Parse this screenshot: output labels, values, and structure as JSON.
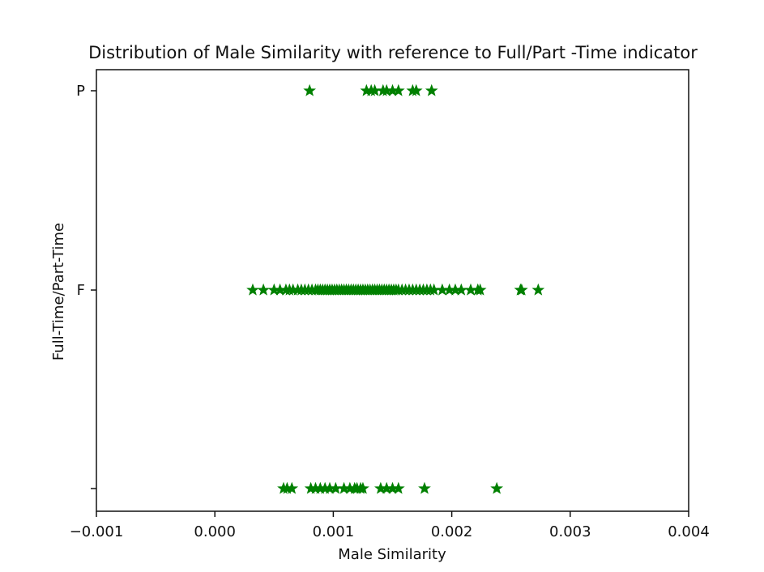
{
  "chart_data": {
    "type": "scatter",
    "title": "Distribution of Male Similarity with reference to Full/Part -Time indicator",
    "xlabel": "Male Similarity",
    "ylabel": "Full-Time/Part-Time",
    "xlim": [
      -0.001,
      0.004
    ],
    "xticks": [
      -0.001,
      0.0,
      0.001,
      0.002,
      0.003,
      0.004
    ],
    "xtick_labels": [
      "−0.001",
      "0.000",
      "0.001",
      "0.002",
      "0.003",
      "0.004"
    ],
    "categories": [
      "",
      "F",
      "P"
    ],
    "grid": false,
    "marker": "star",
    "color": "#008000",
    "series": [
      {
        "category": "P",
        "x": [
          0.0008,
          0.00128,
          0.00132,
          0.00135,
          0.00142,
          0.00145,
          0.0015,
          0.00155,
          0.00167,
          0.0017,
          0.00183
        ]
      },
      {
        "category": "F",
        "x": [
          0.00032,
          0.00041,
          0.0005,
          0.00055,
          0.0006,
          0.00063,
          0.00066,
          0.0007,
          0.00073,
          0.00076,
          0.00079,
          0.00082,
          0.00085,
          0.00087,
          0.00089,
          0.00091,
          0.00093,
          0.00095,
          0.00097,
          0.00099,
          0.00101,
          0.00103,
          0.00105,
          0.00107,
          0.00109,
          0.00111,
          0.00113,
          0.00115,
          0.00117,
          0.00119,
          0.00121,
          0.00123,
          0.00125,
          0.00127,
          0.00129,
          0.00131,
          0.00133,
          0.00135,
          0.00137,
          0.00139,
          0.00141,
          0.00143,
          0.00145,
          0.00147,
          0.00149,
          0.00151,
          0.00153,
          0.00155,
          0.00158,
          0.00161,
          0.00164,
          0.00167,
          0.0017,
          0.00173,
          0.00176,
          0.00179,
          0.00182,
          0.00185,
          0.00192,
          0.00198,
          0.00203,
          0.00208,
          0.00216,
          0.00222,
          0.00224,
          0.00258,
          0.00259,
          0.00273
        ]
      },
      {
        "category": "",
        "x": [
          0.00058,
          0.00061,
          0.00065,
          0.00081,
          0.00085,
          0.00089,
          0.00093,
          0.00097,
          0.00102,
          0.00109,
          0.00114,
          0.00118,
          0.0012,
          0.00123,
          0.00125,
          0.0014,
          0.00145,
          0.0015,
          0.00155,
          0.00177,
          0.00238
        ]
      }
    ]
  }
}
